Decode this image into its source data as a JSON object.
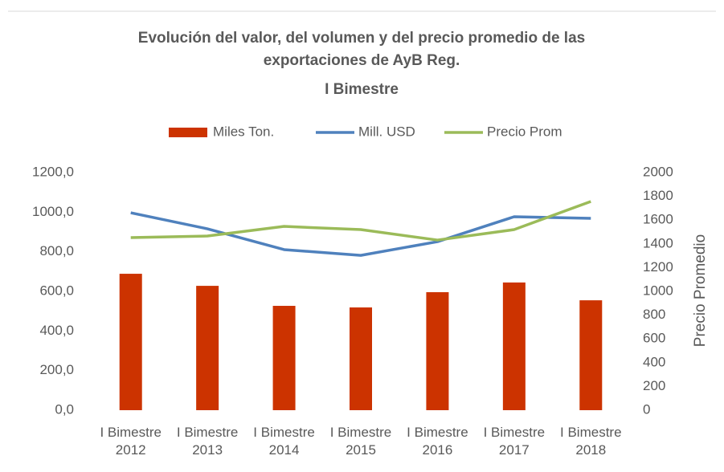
{
  "chart_data": {
    "type": "combo",
    "title": "Evolución del valor, del volumen y del precio promedio de las exportaciones de AyB Reg.",
    "subtitle": "I Bimestre",
    "y2label": "Precio Promedio",
    "categories": [
      "I Bimestre 2012",
      "I Bimestre 2013",
      "I Bimestre 2014",
      "I Bimestre 2015",
      "I Bimestre 2016",
      "I Bimestre 2017",
      "I Bimestre 2018"
    ],
    "series": [
      {
        "name": "Miles Ton.",
        "type": "bar",
        "color": "#cc3300",
        "values": [
          689,
          628,
          527,
          519,
          596,
          645,
          555
        ]
      },
      {
        "name": "Mill. USD",
        "type": "line",
        "color": "#4f81bd",
        "values": [
          997,
          916,
          811,
          782,
          851,
          977,
          969
        ]
      },
      {
        "name": "Precio Prom",
        "type": "line",
        "axis": "y2",
        "color": "#9bbb59",
        "values": [
          1453,
          1466,
          1547,
          1520,
          1432,
          1520,
          1757
        ]
      }
    ],
    "ylim": [
      0,
      1200
    ],
    "yticks": [
      {
        "value": 0,
        "label": "0,0"
      },
      {
        "value": 200,
        "label": "200,0"
      },
      {
        "value": 400,
        "label": "400,0"
      },
      {
        "value": 600,
        "label": "600,0"
      },
      {
        "value": 800,
        "label": "800,0"
      },
      {
        "value": 1000,
        "label": "1000,0"
      },
      {
        "value": 1200,
        "label": "1200,0"
      }
    ],
    "y2lim": [
      0,
      2000
    ],
    "y2ticks": [
      0,
      200,
      400,
      600,
      800,
      1000,
      1200,
      1400,
      1600,
      1800,
      2000
    ],
    "legend": "top"
  }
}
